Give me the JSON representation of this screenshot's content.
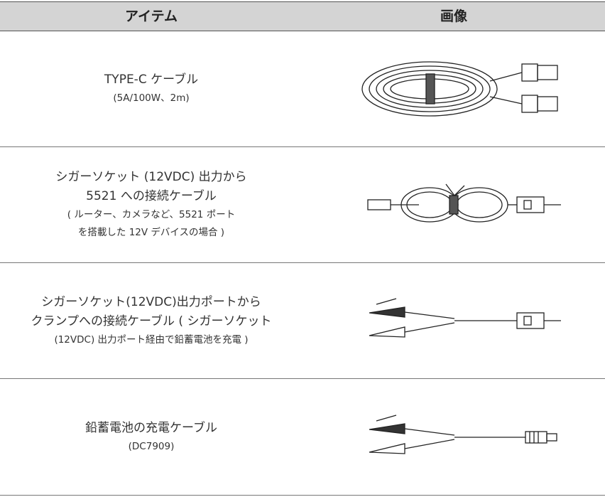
{
  "table": {
    "header": [
      "アイテム",
      "画像"
    ],
    "rows": [
      {
        "lines": [
          "TYPE-C ケーブル",
          "(5A/100W、2m)"
        ]
      },
      {
        "lines": [
          "シガーソケット (12VDC) 出力から",
          "5521 への接続ケーブル",
          "( ルーター、カメラなど、5521 ポート",
          "を搭載した 12V デバイスの場合 )"
        ]
      },
      {
        "lines": [
          "シガーソケット(12VDC)出力ポートから",
          "クランプへの接続ケーブル ( シガーソケット",
          "(12VDC) 出力ポート経由で鉛蓄電池を充電 )"
        ]
      },
      {
        "lines": [
          "鉛蓄電池の充電ケーブル",
          "(DC7909)"
        ]
      }
    ]
  }
}
